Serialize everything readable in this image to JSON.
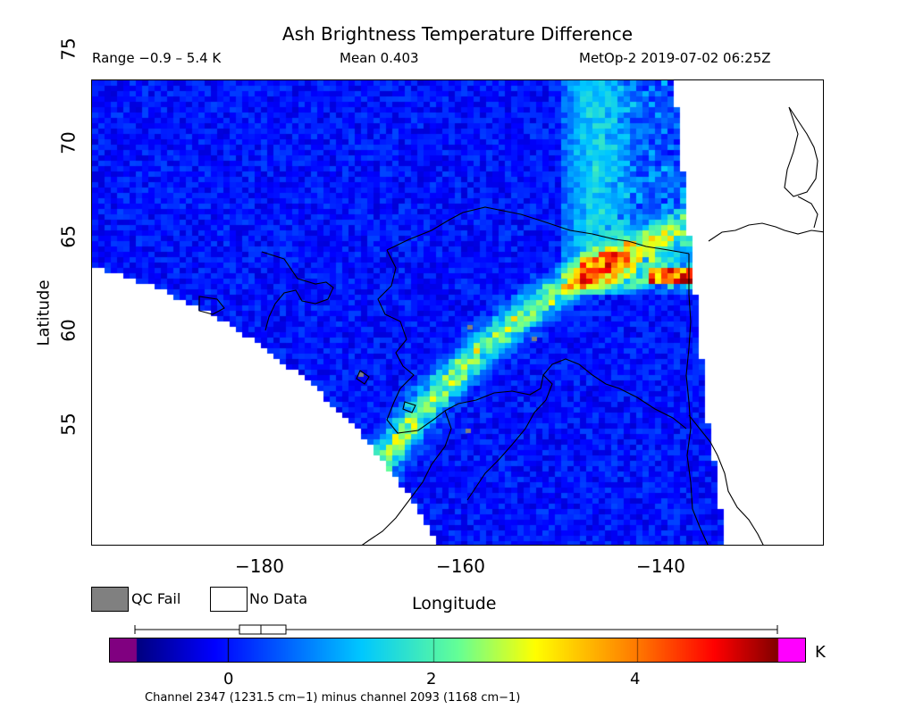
{
  "title": "Ash Brightness Temperature Difference",
  "range_text": "Range −0.9 – 5.4 K",
  "mean_text": "Mean 0.403",
  "sat_text": "MetOp-2 2019-07-02 06:25Z",
  "axes": {
    "lat_label": "Latitude",
    "lon_label": "Longitude",
    "lat_ticks": [
      "75",
      "70",
      "65",
      "60",
      "55"
    ],
    "lon_ticks": [
      "−180",
      "−160",
      "−140"
    ]
  },
  "legend": {
    "qc_fail": "QC Fail",
    "no_data": "No Data",
    "qc_color": "#808080",
    "nodata_color": "#ffffff"
  },
  "colorbar": {
    "unit": "K",
    "ticks": [
      "0",
      "2",
      "4"
    ],
    "below_color": "#800080",
    "above_color": "#ff00ff"
  },
  "channel_note": "Channel 2347 (1231.5 cm−1) minus channel 2093 (1168 cm−1)",
  "map_colors": {
    "background_swath": "#1f5cf0",
    "coast": "#000000"
  }
}
